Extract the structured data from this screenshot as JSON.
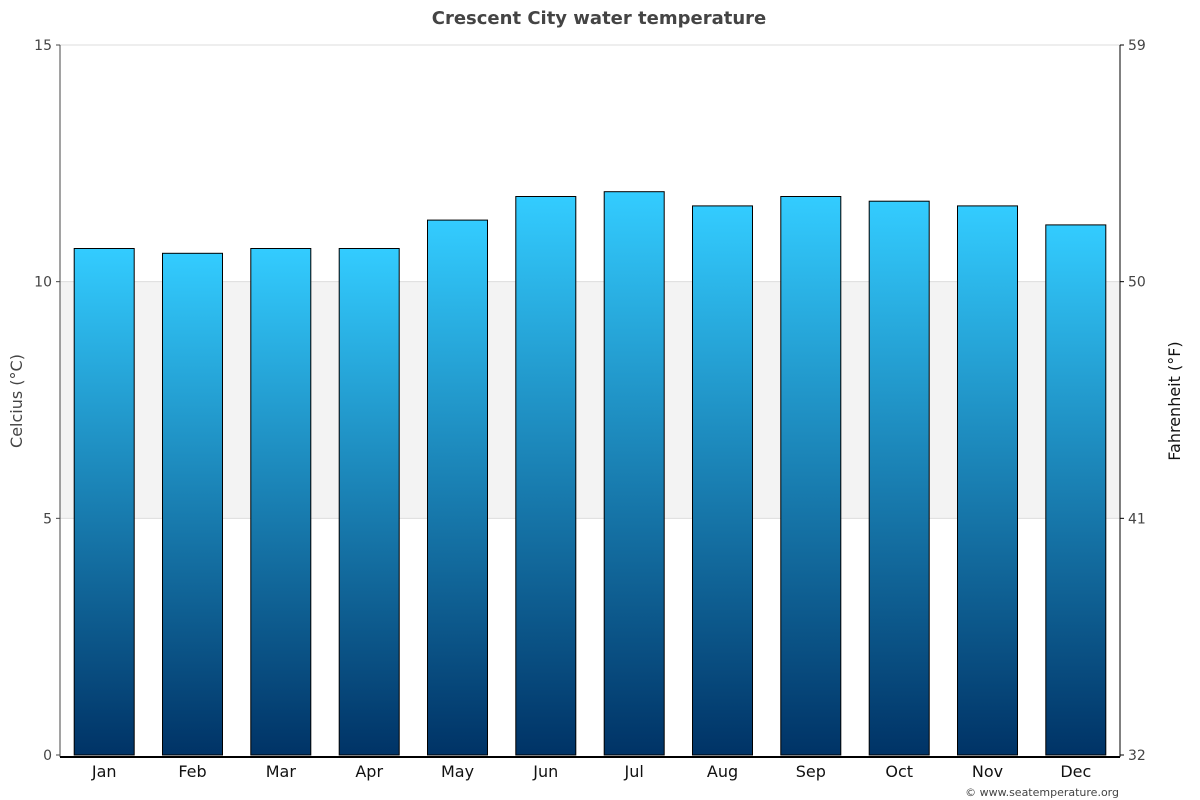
{
  "chart_data": {
    "type": "bar",
    "title": "Crescent City water temperature",
    "categories": [
      "Jan",
      "Feb",
      "Mar",
      "Apr",
      "May",
      "Jun",
      "Jul",
      "Aug",
      "Sep",
      "Oct",
      "Nov",
      "Dec"
    ],
    "values": [
      10.7,
      10.6,
      10.7,
      10.7,
      11.3,
      11.8,
      11.9,
      11.6,
      11.8,
      11.7,
      11.6,
      11.2
    ],
    "ylabel": "Celcius (°C)",
    "ylabel_right": "Fahrenheit (°F)",
    "ylim": [
      0,
      15
    ],
    "yticks": [
      "0",
      "5",
      "10",
      "15"
    ],
    "yticks_right": [
      "32",
      "41",
      "50",
      "59"
    ],
    "band": [
      5,
      10
    ],
    "grid": true
  },
  "colors": {
    "bar_top": "#33ccff",
    "bar_bottom": "#003366",
    "band": "#f3f3f3",
    "gridline": "#dddddd"
  },
  "credit": "© www.seatemperature.org"
}
